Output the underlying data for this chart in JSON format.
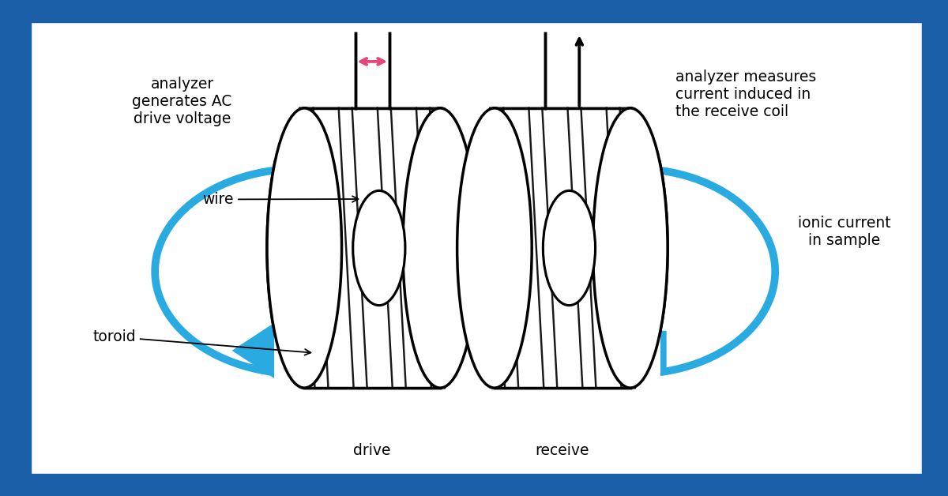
{
  "bg_color": "#1a5fa8",
  "inner_bg": "#ffffff",
  "toroid_color": "#000000",
  "blue_color": "#29abe2",
  "pink_color": "#e8457a",
  "text_color": "#000000",
  "label_drive": "drive",
  "label_receive": "receive",
  "label_wire": "wire",
  "label_toroid": "toroid",
  "label_analyzer_left": "analyzer\ngenerates AC\ndrive voltage",
  "label_analyzer_right": "analyzer measures\ncurrent induced in\nthe receive coil",
  "label_ionic": "ionic current\nin sample",
  "dcx": 0.385,
  "rcx": 0.595,
  "tcy": 0.5,
  "trx": 0.075,
  "try_": 0.3,
  "fig_width": 12.0,
  "fig_height": 6.28
}
